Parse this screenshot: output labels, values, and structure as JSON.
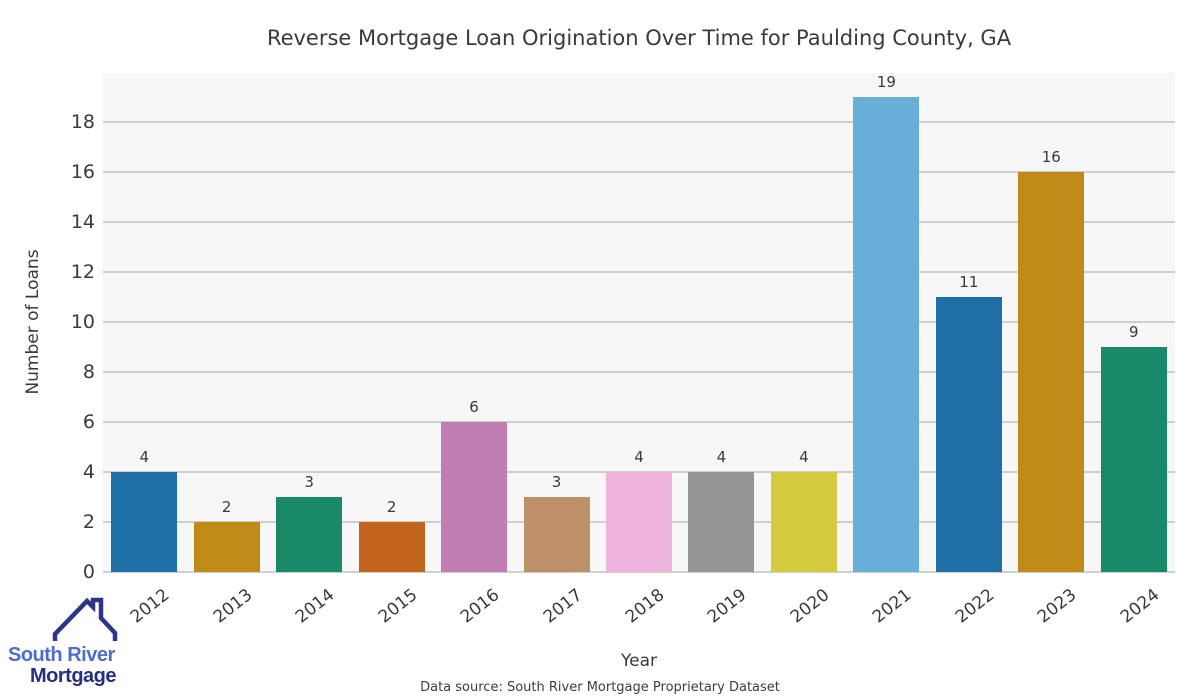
{
  "chart_data": {
    "type": "bar",
    "title": "Reverse Mortgage Loan Origination Over Time for Paulding County, GA",
    "xlabel": "Year",
    "ylabel": "Number of Loans",
    "categories": [
      "2012",
      "2013",
      "2014",
      "2015",
      "2016",
      "2017",
      "2018",
      "2019",
      "2020",
      "2021",
      "2022",
      "2023",
      "2024"
    ],
    "values": [
      4,
      2,
      3,
      2,
      6,
      3,
      4,
      4,
      4,
      19,
      11,
      16,
      9
    ],
    "bar_colors": [
      "#1d6fa5",
      "#c08a17",
      "#198a68",
      "#c0641e",
      "#c07eb3",
      "#bd9067",
      "#efb4dd",
      "#959595",
      "#d5cb40",
      "#67afd8",
      "#1d6fa5",
      "#c08a17",
      "#198a68"
    ],
    "ylim": [
      0,
      19.95
    ],
    "yticks": [
      0,
      2,
      4,
      6,
      8,
      10,
      12,
      14,
      16,
      18
    ],
    "grid": true,
    "legend": "none",
    "plot_bg": "#f7f7f7",
    "grid_color": "#cfcfcf"
  },
  "caption": "Data source: South River Mortgage Proprietary Dataset",
  "logo": {
    "line1": "South River",
    "line2": "Mortgage",
    "text_color_primary": "#4e6cc9",
    "text_color_secondary": "#272f80",
    "roof_color": "#2b3589"
  }
}
